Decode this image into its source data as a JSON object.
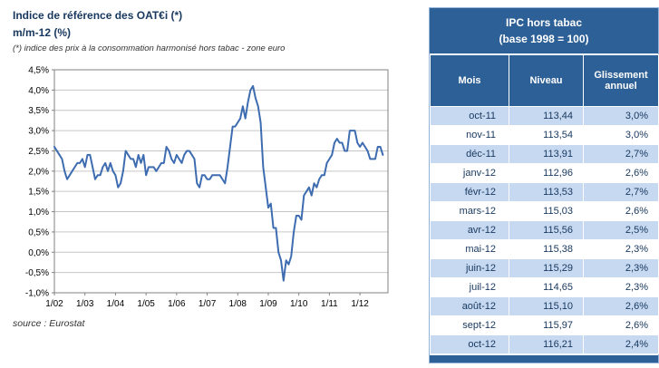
{
  "chart_data": [
    {
      "type": "line",
      "title": "Indice de référence des OAT€i (*)",
      "subtitle": "m/m-12 (%)",
      "note": "(*) indice des prix à la consommation harmonisé hors tabac - zone euro",
      "source": "source : Eurostat",
      "ylim": [
        -1.0,
        4.5
      ],
      "ytick_step": 0.5,
      "ytick_labels": [
        "4,5%",
        "4,0%",
        "3,5%",
        "3,0%",
        "2,5%",
        "2,0%",
        "1,5%",
        "1,0%",
        "0,5%",
        "0,0%",
        "-0,5%",
        "-1,0%"
      ],
      "xtick_labels": [
        "1/02",
        "1/03",
        "1/04",
        "1/05",
        "1/06",
        "1/07",
        "1/08",
        "1/09",
        "1/10",
        "1/11",
        "1/12"
      ],
      "x_range": "monthly, 2002-01 to 2012-10",
      "grid": true,
      "legend": "none",
      "line_color": "#3E6CB0",
      "grid_color": "#C6C6C6",
      "axis_color": "#808080",
      "values": [
        2.6,
        2.5,
        2.4,
        2.3,
        2.0,
        1.8,
        1.9,
        2.0,
        2.1,
        2.2,
        2.2,
        2.3,
        2.1,
        2.4,
        2.4,
        2.1,
        1.8,
        1.9,
        1.9,
        2.1,
        2.2,
        2.0,
        2.2,
        2.0,
        1.9,
        1.6,
        1.7,
        2.0,
        2.5,
        2.4,
        2.3,
        2.3,
        2.1,
        2.4,
        2.2,
        2.4,
        1.9,
        2.1,
        2.1,
        2.1,
        2.0,
        2.1,
        2.2,
        2.2,
        2.6,
        2.5,
        2.3,
        2.2,
        2.4,
        2.3,
        2.2,
        2.4,
        2.5,
        2.5,
        2.4,
        2.3,
        1.7,
        1.6,
        1.9,
        1.9,
        1.8,
        1.8,
        1.9,
        1.9,
        1.9,
        1.9,
        1.8,
        1.7,
        2.1,
        2.6,
        3.1,
        3.1,
        3.2,
        3.3,
        3.6,
        3.3,
        3.7,
        4.0,
        4.1,
        3.8,
        3.6,
        3.2,
        2.1,
        1.6,
        1.1,
        1.2,
        0.6,
        0.6,
        0.0,
        -0.2,
        -0.7,
        -0.2,
        -0.3,
        -0.1,
        0.5,
        0.9,
        0.9,
        0.8,
        1.4,
        1.5,
        1.6,
        1.4,
        1.7,
        1.6,
        1.8,
        1.9,
        1.9,
        2.2,
        2.3,
        2.4,
        2.7,
        2.8,
        2.7,
        2.7,
        2.5,
        2.5,
        3.0,
        3.0,
        3.0,
        2.7,
        2.6,
        2.7,
        2.6,
        2.5,
        2.3,
        2.3,
        2.3,
        2.6,
        2.6,
        2.4
      ]
    },
    {
      "type": "table",
      "title_line1": "IPC hors tabac",
      "title_line2": "(base 1998 = 100)",
      "columns": [
        "Mois",
        "Niveau",
        "Glissement annuel"
      ],
      "rows": [
        [
          "oct-11",
          "113,44",
          "3,0%"
        ],
        [
          "nov-11",
          "113,54",
          "3,0%"
        ],
        [
          "déc-11",
          "113,91",
          "2,7%"
        ],
        [
          "janv-12",
          "112,96",
          "2,6%"
        ],
        [
          "févr-12",
          "113,53",
          "2,7%"
        ],
        [
          "mars-12",
          "115,03",
          "2,6%"
        ],
        [
          "avr-12",
          "115,56",
          "2,5%"
        ],
        [
          "mai-12",
          "115,38",
          "2,3%"
        ],
        [
          "juin-12",
          "115,29",
          "2,3%"
        ],
        [
          "juil-12",
          "114,65",
          "2,3%"
        ],
        [
          "août-12",
          "115,10",
          "2,6%"
        ],
        [
          "sept-12",
          "115,97",
          "2,6%"
        ],
        [
          "oct-12",
          "116,21",
          "2,4%"
        ]
      ],
      "header_bg": "#2D6096",
      "alt_row_bg": "#C6D9F1",
      "text_color": "#17375E"
    }
  ]
}
